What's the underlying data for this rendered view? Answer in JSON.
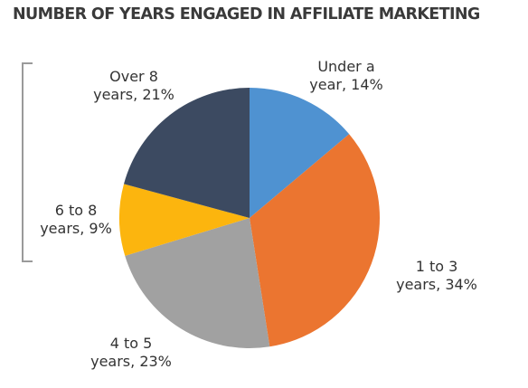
{
  "chart_data": {
    "type": "pie",
    "title": "NUMBER OF YEARS ENGAGED IN AFFILIATE MARKETING",
    "slices": [
      {
        "label": "Under a year, 14%",
        "label_lines": [
          "Under a",
          "year, 14%"
        ],
        "value": 14,
        "color": "#4f92d1"
      },
      {
        "label": "1 to 3 years, 34%",
        "label_lines": [
          "1 to 3",
          "years, 34%"
        ],
        "value": 34,
        "color": "#eb7530"
      },
      {
        "label": "4 to 5 years, 23%",
        "label_lines": [
          "4 to 5",
          "years, 23%"
        ],
        "value": 23,
        "color": "#a1a1a1"
      },
      {
        "label": "6 to 8 years, 9%",
        "label_lines": [
          "6 to 8",
          "years, 9%"
        ],
        "value": 9,
        "color": "#fcb50e"
      },
      {
        "label": "Over 8 years, 21%",
        "label_lines": [
          "Over 8",
          "years, 21%"
        ],
        "value": 21,
        "color": "#3c4a61"
      }
    ],
    "start": "12 o'clock",
    "direction": "clockwise",
    "bracket_encloses": [
      "6 to 8 years, 9%",
      "Over 8 years, 21%"
    ],
    "bracket_color": "#9a9a9a"
  }
}
